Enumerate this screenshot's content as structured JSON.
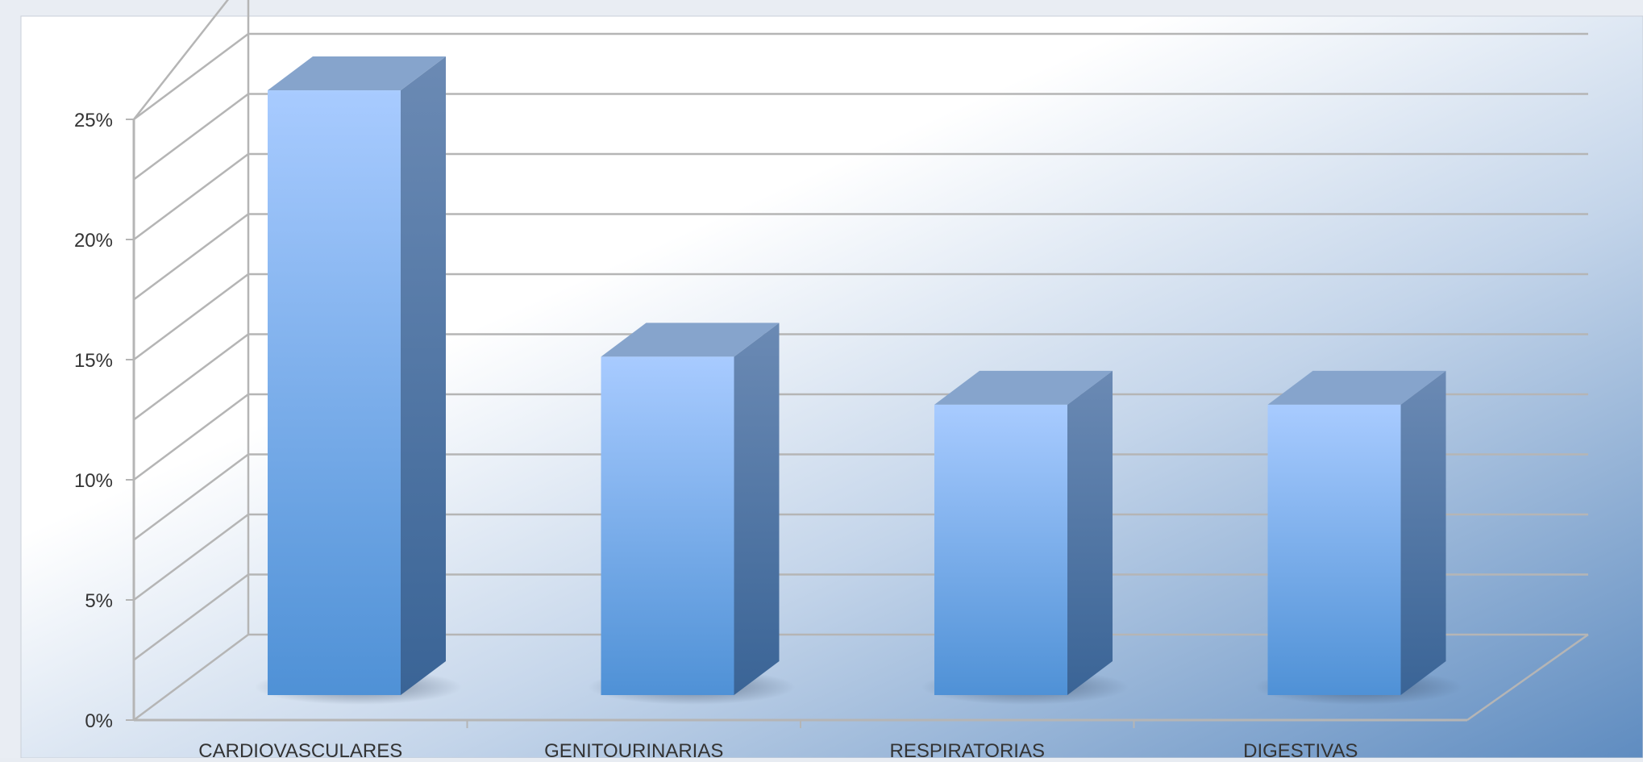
{
  "chart_data": {
    "type": "bar",
    "categories": [
      "CARDIOVASCULARES",
      "GENITOURINARIAS",
      "RESPIRATORIAS",
      "DIGESTIVAS"
    ],
    "values": [
      25.2,
      14.1,
      12.1,
      12.1
    ],
    "unit": "%",
    "ylim": [
      0,
      25
    ],
    "y_ticks": [
      "0%",
      "5%",
      "10%",
      "15%",
      "20%",
      "25%"
    ],
    "grid": true,
    "style": "3d-column",
    "colors": {
      "bar_front_top": "#a8cbff",
      "bar_front_bottom": "#4f91d6",
      "bar_side_top": "#6b8ab4",
      "bar_side_bottom": "#3a6496",
      "bar_top": "#86a4cc",
      "plot_bg_light": "#ffffff",
      "plot_bg_dark": "#5f8cc0",
      "gridline": "#b5b5b5",
      "axis_text": "#333333"
    }
  }
}
